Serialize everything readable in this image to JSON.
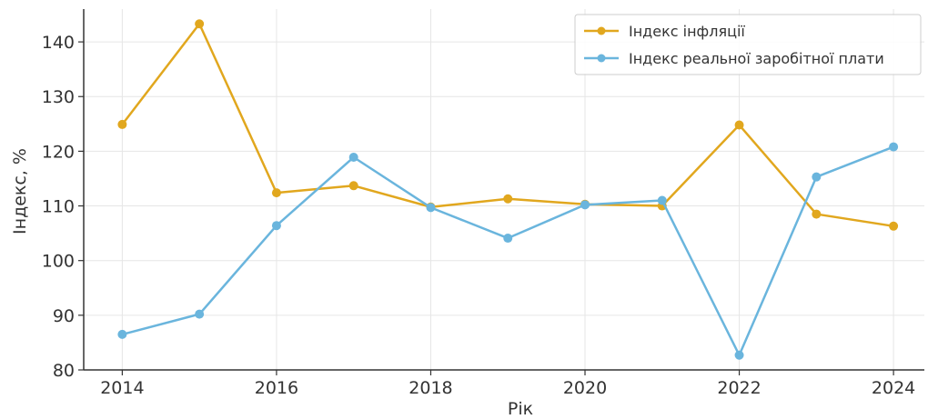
{
  "chart_data": {
    "type": "line",
    "title": "",
    "xlabel": "Рік",
    "ylabel": "Індекс, %",
    "x": [
      2014,
      2015,
      2016,
      2017,
      2018,
      2019,
      2020,
      2021,
      2022,
      2023,
      2024
    ],
    "xlim": [
      2013.5,
      2024.4
    ],
    "ylim": [
      80,
      146
    ],
    "xticks": [
      2014,
      2016,
      2018,
      2020,
      2022,
      2024
    ],
    "yticks": [
      80,
      90,
      100,
      110,
      120,
      130,
      140
    ],
    "grid": true,
    "legend_position": "top-right",
    "series": [
      {
        "name": "Індекс інфляції",
        "color": "#e1a71e",
        "values": [
          124.9,
          143.3,
          112.4,
          113.7,
          109.8,
          111.3,
          110.3,
          110.0,
          124.8,
          108.5,
          106.3
        ]
      },
      {
        "name": "Індекс реальної заробітної плати",
        "color": "#6ab5dd",
        "values": [
          86.5,
          90.2,
          106.4,
          118.9,
          109.7,
          104.1,
          110.2,
          111.0,
          82.7,
          115.3,
          120.8
        ]
      }
    ]
  }
}
